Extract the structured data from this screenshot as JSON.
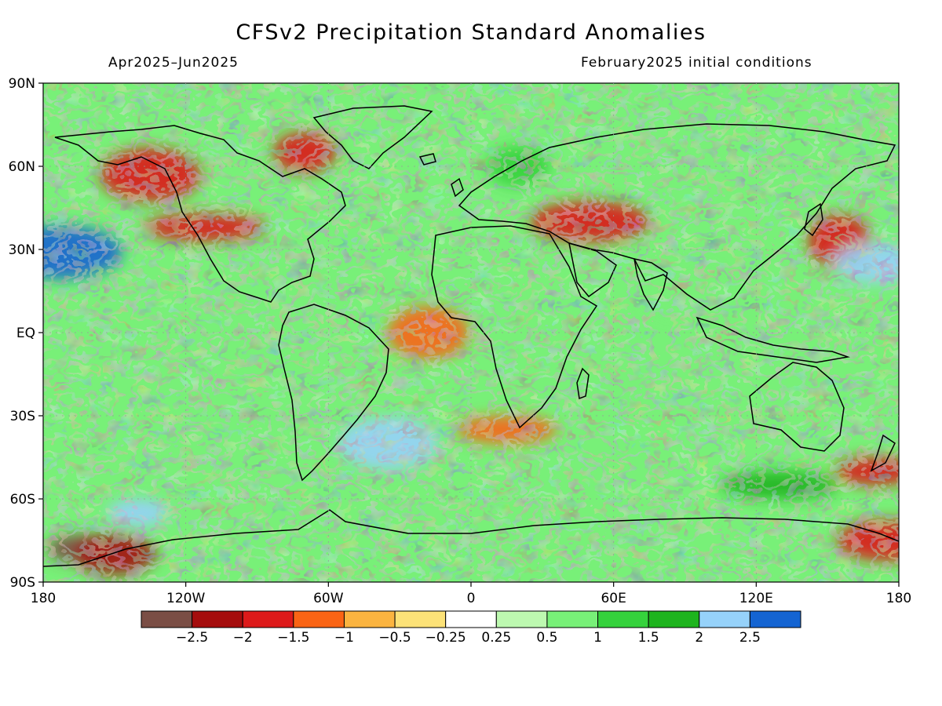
{
  "title": "CFSv2 Precipitation Standard Anomalies",
  "subtitle_left": "Apr2025–Jun2025",
  "subtitle_right": "February2025 initial conditions",
  "chart_data": {
    "type": "heatmap",
    "projection": "equirectangular",
    "lon_range": [
      -180,
      180
    ],
    "lat_range": [
      -90,
      90
    ],
    "x_ticks": [
      {
        "lon": -180,
        "label": "180"
      },
      {
        "lon": -120,
        "label": "120W"
      },
      {
        "lon": -60,
        "label": "60W"
      },
      {
        "lon": 0,
        "label": "0"
      },
      {
        "lon": 60,
        "label": "60E"
      },
      {
        "lon": 120,
        "label": "120E"
      },
      {
        "lon": 180,
        "label": "180"
      }
    ],
    "y_ticks": [
      {
        "lat": 90,
        "label": "90N"
      },
      {
        "lat": 60,
        "label": "60N"
      },
      {
        "lat": 30,
        "label": "30N"
      },
      {
        "lat": 0,
        "label": "EQ"
      },
      {
        "lat": -30,
        "label": "30S"
      },
      {
        "lat": -60,
        "label": "60S"
      },
      {
        "lat": -90,
        "label": "90S"
      }
    ],
    "colorbar": {
      "colors": [
        "#7a4e45",
        "#a50d0d",
        "#dd1a1a",
        "#fa6414",
        "#fbb440",
        "#fce278",
        "#ffffff",
        "#bdf9b0",
        "#78f078",
        "#35d23c",
        "#1eb41e",
        "#96d2fa",
        "#1464d2"
      ],
      "tick_labels": [
        "−2.5",
        "−2",
        "−1.5",
        "−1",
        "−0.5",
        "−0.25",
        "0.25",
        "0.5",
        "1",
        "1.5",
        "2",
        "2.5"
      ]
    },
    "anomaly_regions": [
      {
        "lon": -165,
        "lat": -78,
        "value": -2.6
      },
      {
        "lon": -150,
        "lat": -80,
        "value": -2.2
      },
      {
        "lon": -135,
        "lat": 57,
        "value": -1.8
      },
      {
        "lon": -112,
        "lat": 38,
        "value": -1.8
      },
      {
        "lon": -70,
        "lat": 65,
        "value": -1.5
      },
      {
        "lon": -18,
        "lat": 0,
        "value": -1.2
      },
      {
        "lon": 15,
        "lat": -35,
        "value": -1.3
      },
      {
        "lon": 50,
        "lat": 40,
        "value": -1.5
      },
      {
        "lon": 155,
        "lat": 33,
        "value": -1.8
      },
      {
        "lon": 170,
        "lat": -50,
        "value": -1.6
      },
      {
        "lon": 175,
        "lat": -75,
        "value": -1.5
      },
      {
        "lon": -172,
        "lat": 29,
        "value": 2.6
      },
      {
        "lon": -140,
        "lat": -65,
        "value": 2.3
      },
      {
        "lon": 170,
        "lat": 25,
        "value": 2.4
      },
      {
        "lon": -35,
        "lat": -40,
        "value": 2.2
      },
      {
        "lon": 130,
        "lat": -55,
        "value": 1.6
      },
      {
        "lon": 20,
        "lat": 60,
        "value": 1.2
      },
      {
        "lon": 90,
        "lat": 15,
        "value": 1.0
      }
    ]
  }
}
